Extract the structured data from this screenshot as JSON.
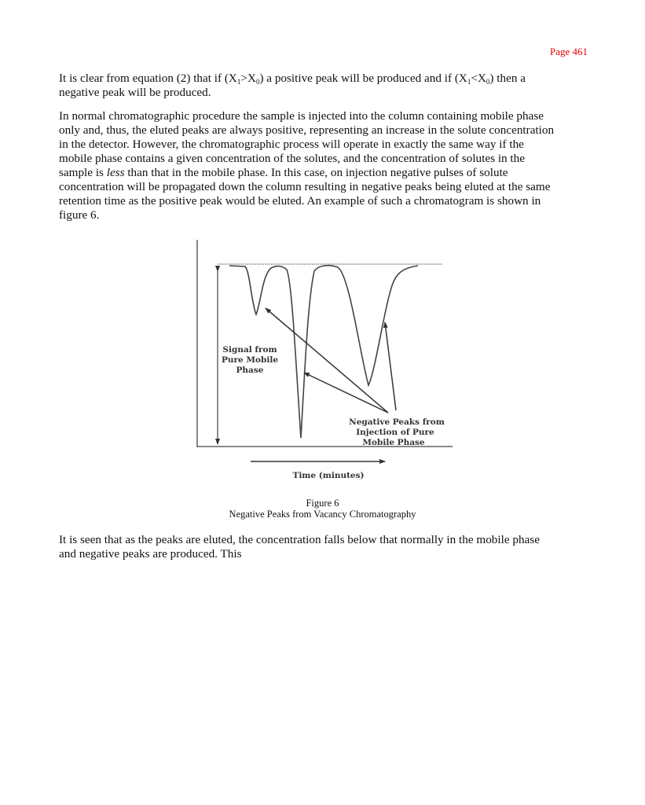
{
  "page_number": "Page 461",
  "para1": {
    "l1": [
      "It is clear from equation (2) that if (X",
      "1",
      ">X",
      "0",
      ") a positive peak will be produced and if (X",
      "1",
      "<X",
      "0",
      ") then a"
    ],
    "l2": "negative peak will be produced."
  },
  "para2": {
    "lines": [
      "In normal chromatographic procedure the sample is injected into the column containing mobile phase",
      "only and, thus, the eluted peaks are always positive, representing an increase in the solute concentration",
      "in the detector. However, the chromatographic process will operate in exactly the same way if the",
      "mobile phase contains a given concentration of the solutes, and the concentration of solutes in the"
    ],
    "l5_pre": "sample is ",
    "l5_em": "less",
    "l5_post": " than that in the mobile phase. In this case, on injection negative pulses of solute",
    "lines2": [
      "concentration will be propagated down the column resulting in negative peaks being eluted at the same",
      "retention time as the positive peak would be eluted. An example of such a chromatogram is shown in",
      "figure 6."
    ]
  },
  "figure": {
    "signal_label": [
      "Signal from",
      "Pure Mobile",
      "Phase"
    ],
    "peaks_label": [
      "Negative Peaks from",
      "Injection of Pure",
      "Mobile Phase"
    ],
    "x_axis_label": "Time (minutes)",
    "caption_number": "Figure 6",
    "caption_title": "Negative Peaks from Vacancy Chromatography"
  },
  "para3": {
    "lines": [
      "It is seen that as the peaks are eluted, the concentration falls below that normally in the mobile phase",
      "and negative peaks are produced. This"
    ]
  },
  "colors": {
    "page_number": "#e00000",
    "text": "#111111"
  }
}
